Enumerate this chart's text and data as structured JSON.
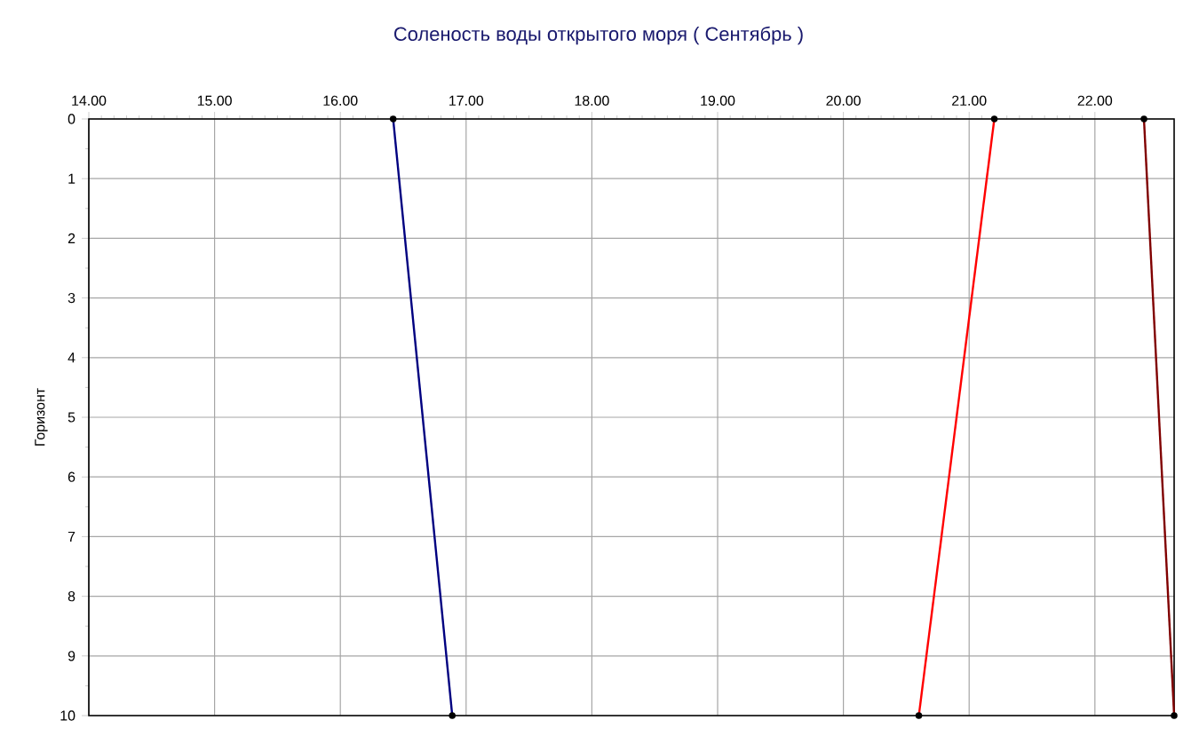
{
  "chart_data": {
    "type": "line",
    "title": "Соленость воды открытого моря    ( Сентябрь )",
    "ylabel": "Горизонт",
    "xlim": [
      14,
      22.63
    ],
    "ylim": [
      10,
      0
    ],
    "xticks": [
      {
        "value": 14,
        "label": "14.00"
      },
      {
        "value": 15,
        "label": "15.00"
      },
      {
        "value": 16,
        "label": "16.00"
      },
      {
        "value": 17,
        "label": "17.00"
      },
      {
        "value": 18,
        "label": "18.00"
      },
      {
        "value": 19,
        "label": "19.00"
      },
      {
        "value": 20,
        "label": "20.00"
      },
      {
        "value": 21,
        "label": "21.00"
      },
      {
        "value": 22,
        "label": "22.00"
      }
    ],
    "yticks": [
      0,
      1,
      2,
      3,
      4,
      5,
      6,
      7,
      8,
      9,
      10
    ],
    "grid": true,
    "legend": false,
    "marker": "circle",
    "line_style": "solid",
    "series": [
      {
        "color": "#000080",
        "x": [
          16.42,
          16.89
        ],
        "values": [
          0,
          10
        ]
      },
      {
        "color": "#ff0000",
        "x": [
          21.2,
          20.6
        ],
        "values": [
          0,
          10
        ]
      },
      {
        "color": "#800000",
        "x": [
          22.39,
          22.63
        ],
        "values": [
          0,
          10
        ]
      }
    ]
  }
}
